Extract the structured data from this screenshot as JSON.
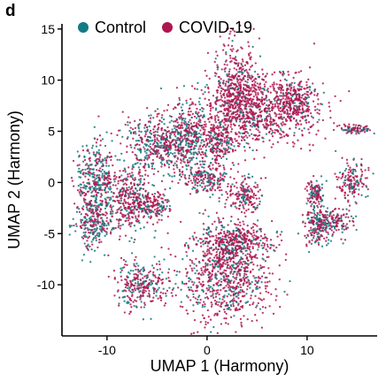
{
  "panel_label": "d",
  "chart_data": {
    "type": "scatter",
    "xlabel": "UMAP 1 (Harmony)",
    "ylabel": "UMAP 2 (Harmony)",
    "xlim": [
      -14.5,
      17
    ],
    "ylim": [
      -15,
      15.5
    ],
    "xticks": [
      -10,
      0,
      10
    ],
    "yticks": [
      -10,
      -5,
      0,
      5,
      10,
      15
    ],
    "grid": false,
    "legend_position": "top",
    "series": [
      {
        "name": "Control",
        "color": "#127a84"
      },
      {
        "name": "COVID-19",
        "color": "#b0154f"
      }
    ],
    "clusters": [
      {
        "cx": -11.2,
        "cy": 0.2,
        "sx": 1.0,
        "sy": 2.0,
        "control_fraction": 0.5
      },
      {
        "cx": -11.3,
        "cy": -4.0,
        "sx": 1.0,
        "sy": 1.2,
        "control_fraction": 0.5
      },
      {
        "cx": -7.6,
        "cy": -1.5,
        "sx": 1.3,
        "sy": 1.6,
        "control_fraction": 0.3
      },
      {
        "cx": -5.5,
        "cy": -2.4,
        "sx": 0.9,
        "sy": 0.6,
        "control_fraction": 0.3
      },
      {
        "cx": -6.5,
        "cy": -10.0,
        "sx": 1.4,
        "sy": 1.1,
        "control_fraction": 0.35
      },
      {
        "cx": -4.8,
        "cy": 3.8,
        "sx": 1.8,
        "sy": 1.4,
        "control_fraction": 0.4
      },
      {
        "cx": -1.6,
        "cy": 4.2,
        "sx": 1.1,
        "sy": 2.0,
        "control_fraction": 0.3
      },
      {
        "cx": 1.2,
        "cy": 4.0,
        "sx": 0.7,
        "sy": 1.1,
        "control_fraction": 0.25
      },
      {
        "cx": 0.2,
        "cy": 0.3,
        "sx": 1.0,
        "sy": 0.7,
        "control_fraction": 0.3
      },
      {
        "cx": 3.6,
        "cy": -1.2,
        "sx": 0.9,
        "sy": 0.8,
        "control_fraction": 0.25
      },
      {
        "cx": 3.0,
        "cy": 8.8,
        "sx": 1.2,
        "sy": 2.5,
        "control_fraction": 0.15
      },
      {
        "cx": 5.6,
        "cy": 7.0,
        "sx": 2.6,
        "sy": 1.6,
        "control_fraction": 0.15
      },
      {
        "cx": 8.8,
        "cy": 8.0,
        "sx": 1.0,
        "sy": 1.3,
        "control_fraction": 0.15
      },
      {
        "cx": 2.0,
        "cy": -9.0,
        "sx": 2.2,
        "sy": 2.4,
        "control_fraction": 0.25
      },
      {
        "cx": 3.0,
        "cy": -5.8,
        "sx": 1.6,
        "sy": 1.0,
        "control_fraction": 0.2
      },
      {
        "cx": 14.8,
        "cy": 5.2,
        "sx": 0.8,
        "sy": 0.2,
        "control_fraction": 0.3
      },
      {
        "cx": 12.5,
        "cy": -3.8,
        "sx": 1.0,
        "sy": 0.7,
        "control_fraction": 0.35
      },
      {
        "cx": 11.0,
        "cy": -4.2,
        "sx": 0.6,
        "sy": 1.1,
        "control_fraction": 0.4
      },
      {
        "cx": 10.8,
        "cy": -1.0,
        "sx": 0.5,
        "sy": 0.6,
        "control_fraction": 0.4
      },
      {
        "cx": 14.5,
        "cy": 0.2,
        "sx": 0.7,
        "sy": 0.9,
        "control_fraction": 0.3
      }
    ]
  }
}
